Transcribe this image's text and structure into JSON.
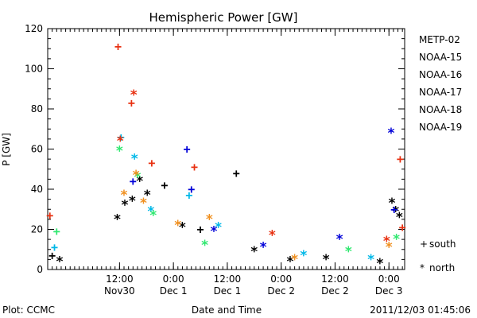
{
  "chart_data": {
    "type": "scatter",
    "title": "Hemispheric Power [GW]",
    "xlabel": "Date and Time",
    "ylabel": "P [GW]",
    "ylim": [
      0,
      120
    ],
    "xlim": [
      "2011-11-29T20:00",
      "2011-12-03T03:30"
    ],
    "yticks": [
      0,
      20,
      40,
      60,
      80,
      100,
      120
    ],
    "xticks": [
      {
        "at": "2011-11-30T12:00",
        "line1": "12:00",
        "line2": "Nov30"
      },
      {
        "at": "2011-12-01T00:00",
        "line1": "0:00",
        "line2": "Dec 1"
      },
      {
        "at": "2011-12-01T12:00",
        "line1": "12:00",
        "line2": "Dec 1"
      },
      {
        "at": "2011-12-02T00:00",
        "line1": "0:00",
        "line2": "Dec 2"
      },
      {
        "at": "2011-12-02T12:00",
        "line1": "12:00",
        "line2": "Dec 2"
      },
      {
        "at": "2011-12-03T00:00",
        "line1": "0:00",
        "line2": "Dec 3"
      }
    ],
    "legend_placement": "right",
    "series": [
      {
        "name": "METP-02",
        "color": "#000000",
        "points": [
          {
            "x": "2011-11-29T21:00",
            "y": 7,
            "hem": "south"
          },
          {
            "x": "2011-11-29T22:40",
            "y": 5,
            "hem": "north"
          },
          {
            "x": "2011-11-30T11:30",
            "y": 26,
            "hem": "north"
          },
          {
            "x": "2011-11-30T13:10",
            "y": 33,
            "hem": "north"
          },
          {
            "x": "2011-11-30T14:50",
            "y": 35,
            "hem": "north"
          },
          {
            "x": "2011-11-30T16:30",
            "y": 45,
            "hem": "north"
          },
          {
            "x": "2011-11-30T18:10",
            "y": 38,
            "hem": "north"
          },
          {
            "x": "2011-11-30T22:00",
            "y": 42,
            "hem": "south"
          },
          {
            "x": "2011-12-01T02:00",
            "y": 22,
            "hem": "north"
          },
          {
            "x": "2011-12-01T06:00",
            "y": 20,
            "hem": "south"
          },
          {
            "x": "2011-12-01T14:00",
            "y": 48,
            "hem": "south"
          },
          {
            "x": "2011-12-01T18:00",
            "y": 10,
            "hem": "north"
          },
          {
            "x": "2011-12-02T02:00",
            "y": 5,
            "hem": "north"
          },
          {
            "x": "2011-12-02T10:00",
            "y": 6,
            "hem": "north"
          },
          {
            "x": "2011-12-02T22:00",
            "y": 4,
            "hem": "north"
          },
          {
            "x": "2011-12-03T00:40",
            "y": 34,
            "hem": "north"
          },
          {
            "x": "2011-12-03T01:30",
            "y": 30,
            "hem": "north"
          },
          {
            "x": "2011-12-03T02:20",
            "y": 27,
            "hem": "north"
          }
        ]
      },
      {
        "name": "NOAA-15",
        "color": "#0000d8",
        "points": [
          {
            "x": "2011-11-30T15:00",
            "y": 44,
            "hem": "south"
          },
          {
            "x": "2011-12-01T04:00",
            "y": 40,
            "hem": "south"
          },
          {
            "x": "2011-12-01T03:00",
            "y": 60,
            "hem": "south"
          },
          {
            "x": "2011-12-01T09:00",
            "y": 20,
            "hem": "north"
          },
          {
            "x": "2011-12-01T20:00",
            "y": 12,
            "hem": "north"
          },
          {
            "x": "2011-12-02T13:00",
            "y": 16,
            "hem": "north"
          },
          {
            "x": "2011-12-03T00:30",
            "y": 69,
            "hem": "north"
          },
          {
            "x": "2011-12-03T01:10",
            "y": 30,
            "hem": "south"
          }
        ]
      },
      {
        "name": "NOAA-16",
        "color": "#00b8e8",
        "points": [
          {
            "x": "2011-11-29T21:30",
            "y": 11,
            "hem": "south"
          },
          {
            "x": "2011-11-30T12:20",
            "y": 66,
            "hem": "south"
          },
          {
            "x": "2011-11-30T15:20",
            "y": 56,
            "hem": "north"
          },
          {
            "x": "2011-11-30T19:00",
            "y": 30,
            "hem": "north"
          },
          {
            "x": "2011-12-01T03:30",
            "y": 37,
            "hem": "south"
          },
          {
            "x": "2011-12-01T10:00",
            "y": 22,
            "hem": "north"
          },
          {
            "x": "2011-12-02T05:00",
            "y": 8,
            "hem": "north"
          },
          {
            "x": "2011-12-02T20:00",
            "y": 6,
            "hem": "north"
          }
        ]
      },
      {
        "name": "NOAA-17",
        "color": "#30e870",
        "points": [
          {
            "x": "2011-11-29T22:00",
            "y": 19,
            "hem": "south"
          },
          {
            "x": "2011-11-30T12:00",
            "y": 60,
            "hem": "north"
          },
          {
            "x": "2011-11-30T16:00",
            "y": 47,
            "hem": "north"
          },
          {
            "x": "2011-11-30T19:30",
            "y": 28,
            "hem": "north"
          },
          {
            "x": "2011-12-01T07:00",
            "y": 13,
            "hem": "north"
          },
          {
            "x": "2011-12-02T15:00",
            "y": 10,
            "hem": "north"
          },
          {
            "x": "2011-12-03T01:40",
            "y": 16,
            "hem": "north"
          }
        ]
      },
      {
        "name": "NOAA-18",
        "color": "#f09020",
        "points": [
          {
            "x": "2011-11-30T13:00",
            "y": 38,
            "hem": "north"
          },
          {
            "x": "2011-11-30T15:40",
            "y": 48,
            "hem": "north"
          },
          {
            "x": "2011-11-30T17:20",
            "y": 34,
            "hem": "north"
          },
          {
            "x": "2011-12-01T01:00",
            "y": 23,
            "hem": "north"
          },
          {
            "x": "2011-12-01T08:00",
            "y": 26,
            "hem": "north"
          },
          {
            "x": "2011-12-02T03:00",
            "y": 6,
            "hem": "north"
          },
          {
            "x": "2011-12-03T00:00",
            "y": 12,
            "hem": "north"
          }
        ]
      },
      {
        "name": "NOAA-19",
        "color": "#e83010",
        "points": [
          {
            "x": "2011-11-29T20:30",
            "y": 27,
            "hem": "south"
          },
          {
            "x": "2011-11-30T11:40",
            "y": 111,
            "hem": "south"
          },
          {
            "x": "2011-11-30T12:10",
            "y": 65,
            "hem": "north"
          },
          {
            "x": "2011-11-30T14:40",
            "y": 83,
            "hem": "south"
          },
          {
            "x": "2011-11-30T15:10",
            "y": 88,
            "hem": "north"
          },
          {
            "x": "2011-11-30T19:10",
            "y": 53,
            "hem": "south"
          },
          {
            "x": "2011-12-01T04:40",
            "y": 51,
            "hem": "south"
          },
          {
            "x": "2011-12-01T22:00",
            "y": 18,
            "hem": "north"
          },
          {
            "x": "2011-12-03T02:30",
            "y": 55,
            "hem": "south"
          },
          {
            "x": "2011-12-03T03:00",
            "y": 21,
            "hem": "south"
          },
          {
            "x": "2011-12-02T23:30",
            "y": 15,
            "hem": "north"
          }
        ]
      }
    ],
    "hemisphere_legend": [
      {
        "symbol": "+",
        "label": "south"
      },
      {
        "symbol": "*",
        "label": "north"
      }
    ]
  },
  "footer": {
    "left": "Plot: CCMC",
    "right": "2011/12/03 01:45:06"
  }
}
